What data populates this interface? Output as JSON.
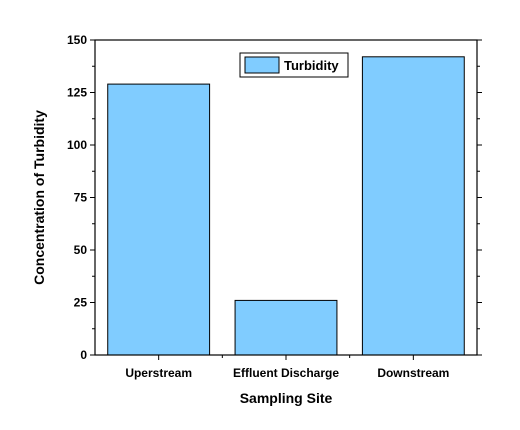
{
  "chart_data": {
    "type": "bar",
    "title": "",
    "xlabel": "Sampling Site",
    "ylabel": "Concentration of Turbidity",
    "categories": [
      "Uperstream",
      "Effluent Discharge",
      "Downstream"
    ],
    "series": [
      {
        "name": "Turbidity",
        "values": [
          129,
          26,
          142
        ],
        "color": "#80ccff"
      }
    ],
    "ylim": [
      0,
      150
    ],
    "yticks": [
      0,
      25,
      50,
      75,
      100,
      125,
      150
    ],
    "grid": false,
    "legend": "top-right"
  }
}
